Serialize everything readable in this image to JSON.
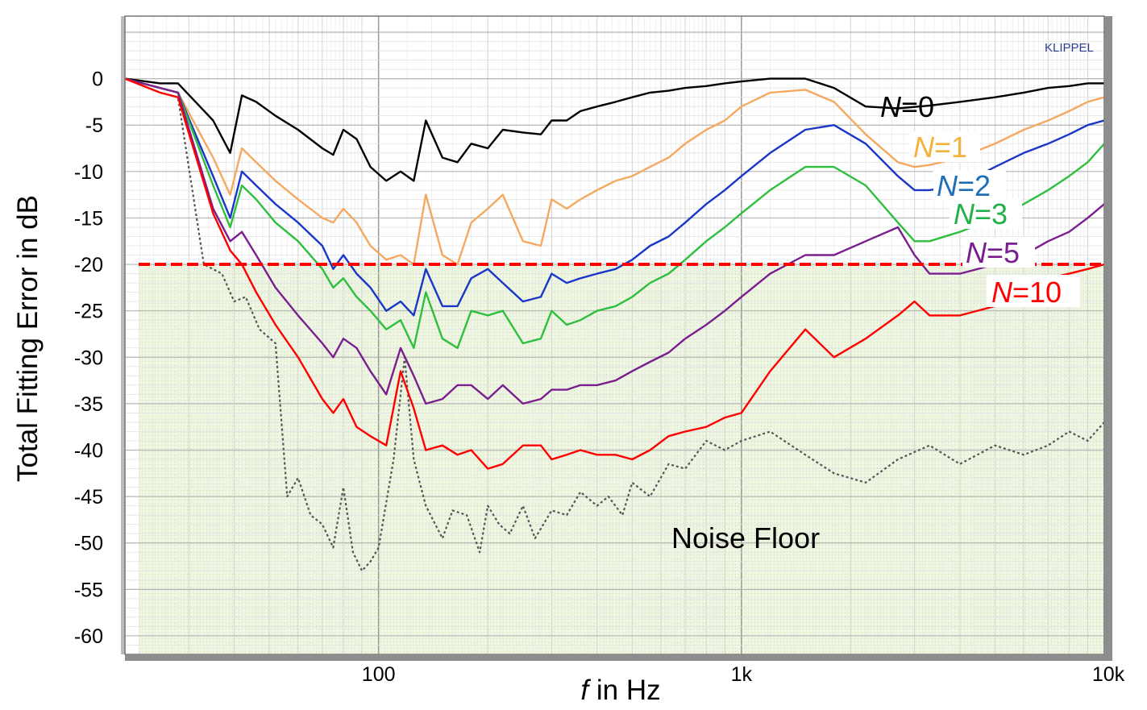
{
  "chart_data": {
    "type": "line",
    "title": "",
    "brand": "KLIPPEL",
    "xlabel_italic": "f",
    "xlabel_rest": " in Hz",
    "ylabel": "Total Fitting Error in dB",
    "x_scale": "log",
    "xlim": [
      20,
      10000
    ],
    "ylim": [
      -62,
      5
    ],
    "x_ticks": [
      {
        "value": 100,
        "label": "100"
      },
      {
        "value": 1000,
        "label": "1k"
      },
      {
        "value": 10000,
        "label": "10k"
      }
    ],
    "y_ticks": [
      0,
      -5,
      -10,
      -15,
      -20,
      -25,
      -30,
      -35,
      -40,
      -45,
      -50,
      -55,
      -60
    ],
    "grid": true,
    "threshold": {
      "value": -20,
      "color": "#ff0000",
      "style": "dashed",
      "fill_below_color": "#e8f3d6"
    },
    "annotation": "Noise Floor",
    "series": [
      {
        "name": "N=0",
        "n_label": "N",
        "eq_label": "=0",
        "color": "#000000",
        "style": "solid",
        "x": [
          20,
          25,
          28,
          35,
          39,
          42,
          46,
          52,
          60,
          70,
          75,
          80,
          87,
          95,
          105,
          115,
          125,
          135,
          150,
          165,
          180,
          200,
          220,
          250,
          280,
          300,
          330,
          360,
          400,
          450,
          500,
          560,
          630,
          700,
          800,
          900,
          1000,
          1200,
          1500,
          1800,
          2200,
          2700,
          3300,
          4000,
          5000,
          6000,
          7000,
          8000,
          9000,
          10000
        ],
        "y": [
          0,
          -0.5,
          -0.5,
          -4.5,
          -8,
          -1.8,
          -2.5,
          -4,
          -5.5,
          -7.5,
          -8.2,
          -5.5,
          -6.5,
          -9.5,
          -11,
          -10,
          -11,
          -4.5,
          -8.5,
          -9,
          -7,
          -7.5,
          -5.5,
          -5.8,
          -6,
          -4.5,
          -4.5,
          -3.5,
          -3,
          -2.5,
          -2,
          -1.5,
          -1.3,
          -1,
          -0.8,
          -0.5,
          -0.3,
          0,
          0,
          -1,
          -3,
          -3.2,
          -2.9,
          -2.5,
          -2,
          -1.5,
          -1,
          -0.8,
          -0.5,
          -0.5
        ]
      },
      {
        "name": "N=1",
        "n_label": "N",
        "eq_label": "=1",
        "color": "#f5a860",
        "style": "solid",
        "x": [
          20,
          25,
          28,
          35,
          39,
          42,
          46,
          52,
          60,
          70,
          75,
          80,
          87,
          95,
          105,
          115,
          125,
          135,
          150,
          165,
          180,
          200,
          220,
          250,
          280,
          300,
          330,
          360,
          400,
          450,
          500,
          560,
          630,
          700,
          800,
          900,
          1000,
          1200,
          1500,
          1800,
          2200,
          2700,
          3000,
          3300,
          4000,
          5000,
          6000,
          7000,
          8000,
          9000,
          10000
        ],
        "y": [
          0,
          -1,
          -1.5,
          -8.5,
          -12.5,
          -7.5,
          -9,
          -11,
          -13,
          -15,
          -15.5,
          -14,
          -15.5,
          -18,
          -19.5,
          -19,
          -20,
          -12.5,
          -19,
          -20,
          -15.5,
          -14,
          -12.5,
          -17.5,
          -18,
          -13,
          -14,
          -13,
          -12,
          -11,
          -10.5,
          -9.5,
          -8.5,
          -7,
          -5.5,
          -4.5,
          -3,
          -1.5,
          -1.2,
          -2.5,
          -6,
          -9,
          -9.5,
          -9.3,
          -8.5,
          -7,
          -5.5,
          -4.5,
          -3.5,
          -2.5,
          -2
        ]
      },
      {
        "name": "N=2",
        "n_label": "N",
        "eq_label": "=2",
        "color": "#1a36c8",
        "style": "solid",
        "x": [
          20,
          25,
          28,
          35,
          39,
          42,
          46,
          52,
          60,
          70,
          75,
          80,
          87,
          95,
          105,
          115,
          125,
          135,
          150,
          165,
          180,
          200,
          220,
          250,
          280,
          300,
          330,
          360,
          400,
          450,
          500,
          560,
          630,
          700,
          800,
          900,
          1000,
          1200,
          1500,
          1800,
          2200,
          2700,
          3000,
          3300,
          4000,
          5000,
          6000,
          7000,
          8000,
          9000,
          10000
        ],
        "y": [
          0,
          -1,
          -1.5,
          -10.5,
          -15,
          -10,
          -11.5,
          -13.5,
          -15.5,
          -18,
          -20.5,
          -19,
          -21,
          -22.5,
          -25,
          -24,
          -25.5,
          -20.5,
          -24.5,
          -24.5,
          -21.5,
          -20.5,
          -22,
          -24,
          -23.5,
          -21,
          -22,
          -21.5,
          -21,
          -20.5,
          -19.5,
          -18,
          -17,
          -15.5,
          -13.5,
          -12,
          -10.5,
          -8,
          -5.5,
          -5,
          -7,
          -10.5,
          -12,
          -12,
          -11.5,
          -9.5,
          -8,
          -7,
          -6,
          -5,
          -4.5
        ]
      },
      {
        "name": "N=3",
        "n_label": "N",
        "eq_label": "=3",
        "color": "#2fbf3f",
        "style": "solid",
        "x": [
          20,
          25,
          28,
          35,
          39,
          42,
          46,
          52,
          60,
          70,
          75,
          80,
          87,
          95,
          105,
          115,
          125,
          135,
          150,
          165,
          180,
          200,
          220,
          250,
          280,
          300,
          330,
          360,
          400,
          450,
          500,
          560,
          630,
          700,
          800,
          900,
          1000,
          1200,
          1500,
          1800,
          2200,
          2700,
          3000,
          3300,
          4000,
          5000,
          6000,
          7000,
          8000,
          9000,
          10000
        ],
        "y": [
          0,
          -1,
          -1.5,
          -11.5,
          -16,
          -11.5,
          -13,
          -15.5,
          -17.5,
          -20.5,
          -22.5,
          -21.5,
          -23.5,
          -25,
          -27,
          -26,
          -29,
          -23,
          -28,
          -29,
          -25,
          -25.5,
          -25,
          -28.5,
          -28,
          -25,
          -26.5,
          -26,
          -25,
          -24.5,
          -23.5,
          -22,
          -21,
          -19.5,
          -17.5,
          -16,
          -14.5,
          -12,
          -9.5,
          -9.5,
          -11.5,
          -15.5,
          -17.5,
          -17.5,
          -16.5,
          -15,
          -13.5,
          -12,
          -10.5,
          -9,
          -7
        ]
      },
      {
        "name": "N=5",
        "n_label": "N",
        "eq_label": "=5",
        "color": "#7a1e8e",
        "style": "solid",
        "x": [
          20,
          25,
          28,
          35,
          39,
          42,
          46,
          52,
          60,
          70,
          75,
          80,
          87,
          95,
          105,
          115,
          125,
          135,
          150,
          165,
          180,
          200,
          220,
          250,
          280,
          300,
          330,
          360,
          400,
          450,
          500,
          560,
          630,
          700,
          800,
          900,
          1000,
          1200,
          1500,
          1800,
          2200,
          2700,
          3000,
          3300,
          4000,
          5000,
          6000,
          7000,
          8000,
          9000,
          10000
        ],
        "y": [
          0,
          -1,
          -1.5,
          -14,
          -17.5,
          -16.5,
          -19,
          -22.5,
          -25.5,
          -28.5,
          -30,
          -28,
          -29,
          -31.5,
          -34,
          -29,
          -32,
          -35,
          -34.5,
          -33,
          -33,
          -34.5,
          -33,
          -35,
          -34.5,
          -33.5,
          -33.5,
          -33,
          -33,
          -32.5,
          -31.5,
          -30.5,
          -29.5,
          -28,
          -26.5,
          -25,
          -23.5,
          -21,
          -19,
          -19,
          -17.5,
          -16,
          -19,
          -21,
          -21,
          -20,
          -19,
          -17.5,
          -16.5,
          -15,
          -13.5
        ]
      },
      {
        "name": "N=10",
        "n_label": "N",
        "eq_label": "=10",
        "color": "#ff0000",
        "style": "solid",
        "x": [
          20,
          25,
          28,
          35,
          39,
          42,
          46,
          52,
          60,
          70,
          75,
          80,
          87,
          95,
          105,
          115,
          125,
          135,
          150,
          165,
          180,
          200,
          220,
          250,
          280,
          300,
          330,
          360,
          400,
          450,
          500,
          560,
          630,
          700,
          800,
          900,
          1000,
          1200,
          1500,
          1800,
          2200,
          2700,
          3000,
          3300,
          4000,
          5000,
          6000,
          7000,
          8000,
          9000,
          10000
        ],
        "y": [
          0,
          -1.5,
          -2,
          -14.5,
          -18.5,
          -20,
          -23,
          -26.5,
          -30,
          -34.5,
          -36,
          -34.5,
          -37.5,
          -38.5,
          -39.5,
          -31.5,
          -35.5,
          -40,
          -39.5,
          -40.5,
          -40,
          -42,
          -41.5,
          -39.5,
          -39.5,
          -41,
          -40.5,
          -40,
          -40.5,
          -40.5,
          -41,
          -40,
          -38.5,
          -38,
          -37.5,
          -36.5,
          -36,
          -31.5,
          -27,
          -30,
          -28,
          -25.5,
          -24,
          -25.5,
          -25.5,
          -24.5,
          -23,
          -21.5,
          -21,
          -20.5,
          -20
        ]
      },
      {
        "name": "Noise Floor",
        "color": "#555555",
        "style": "dotted",
        "x": [
          20,
          25,
          28,
          33,
          37,
          40,
          43,
          47,
          52,
          56,
          60,
          65,
          70,
          75,
          80,
          85,
          90,
          95,
          100,
          110,
          118,
          125,
          135,
          150,
          160,
          175,
          190,
          200,
          215,
          230,
          250,
          270,
          300,
          330,
          360,
          400,
          430,
          470,
          500,
          560,
          630,
          700,
          800,
          900,
          1000,
          1200,
          1500,
          1800,
          2200,
          2700,
          3300,
          4000,
          5000,
          6000,
          7000,
          8000,
          9000,
          10000
        ],
        "y": [
          0,
          -1.5,
          -2,
          -20,
          -21,
          -24,
          -23.5,
          -27,
          -28.5,
          -45,
          -43,
          -47,
          -48,
          -50.5,
          -44,
          -51,
          -53,
          -52,
          -50.5,
          -41,
          -30,
          -41,
          -46,
          -49.5,
          -46.5,
          -47,
          -51,
          -46,
          -48,
          -49,
          -46,
          -49.5,
          -46.5,
          -47,
          -44.5,
          -46,
          -45,
          -47,
          -43.5,
          -45,
          -41.5,
          -42,
          -39,
          -40,
          -39,
          -38,
          -40.5,
          -42.5,
          -43.5,
          -41,
          -39.5,
          -41.5,
          -39.5,
          -40.5,
          -39.5,
          -38,
          -39,
          -37
        ]
      }
    ]
  }
}
